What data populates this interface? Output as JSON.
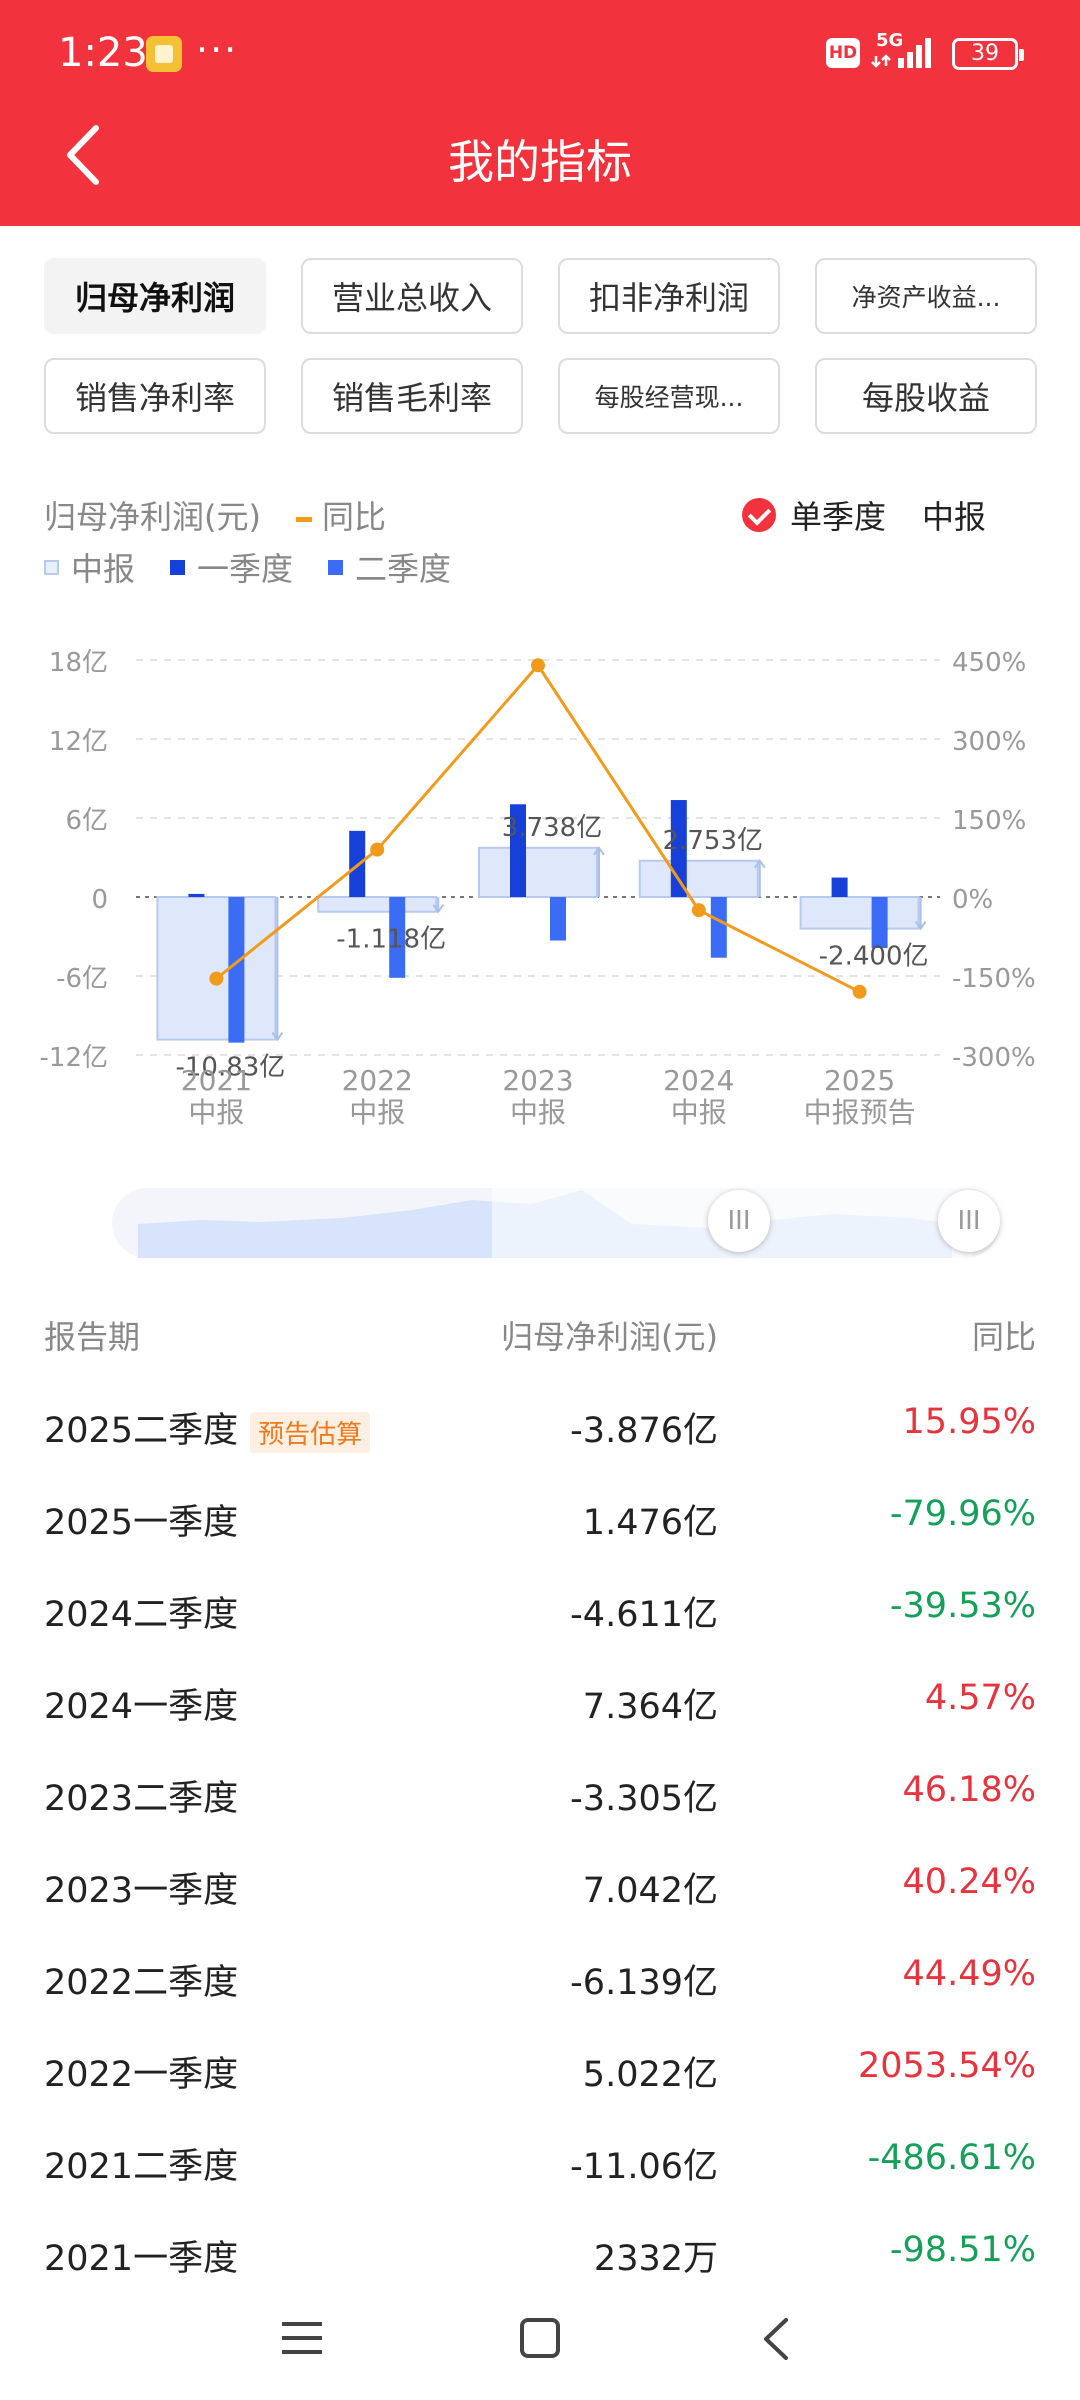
{
  "status_bar": {
    "time": "1:23",
    "dots": "···",
    "hd": "HD",
    "network": "5G",
    "battery": "39"
  },
  "header": {
    "title": "我的指标",
    "color": "#f2323c"
  },
  "tags": [
    {
      "label": "归母净利润",
      "active": true
    },
    {
      "label": "营业总收入",
      "active": false
    },
    {
      "label": "扣非净利润",
      "active": false
    },
    {
      "label": "净资产收益...",
      "active": false
    },
    {
      "label": "销售净利率",
      "active": false
    },
    {
      "label": "销售毛利率",
      "active": false
    },
    {
      "label": "每股经营现...",
      "active": false
    },
    {
      "label": "每股收益",
      "active": false
    }
  ],
  "legend": {
    "metric": "归母净利润(元)",
    "yoy": "同比",
    "single_quarter": "单季度",
    "half_year": "中报",
    "halfyear_series": "中报",
    "q1_series": "一季度",
    "q2_series": "二季度"
  },
  "chart_data": {
    "type": "bar",
    "categories": [
      "2021\n中报",
      "2022\n中报",
      "2023\n中报",
      "2024\n中报",
      "2025\n中报预告"
    ],
    "category_years": [
      "2021",
      "2022",
      "2023",
      "2024",
      "2025"
    ],
    "category_sub": [
      "中报",
      "中报",
      "中报",
      "中报",
      "中报预告"
    ],
    "series": [
      {
        "name": "中报",
        "type": "bar",
        "values": [
          -10.83,
          -1.118,
          3.738,
          2.753,
          -2.4
        ],
        "labels": [
          "-10.83亿",
          "-1.118亿",
          "3.738亿",
          "2.753亿",
          "-2.400亿"
        ],
        "color": "#dfe8fb"
      },
      {
        "name": "一季度",
        "type": "bar",
        "values": [
          0.2332,
          5.022,
          7.042,
          7.364,
          1.476
        ],
        "color": "#1640d8"
      },
      {
        "name": "二季度",
        "type": "bar",
        "values": [
          -11.06,
          -6.139,
          -3.305,
          -4.611,
          -3.876
        ],
        "color": "#3a6cf5"
      },
      {
        "name": "同比",
        "type": "line",
        "axis": "right",
        "values": [
          -155,
          90,
          440,
          -25,
          -180
        ],
        "color": "#f19a1c"
      }
    ],
    "y_left": {
      "ticks": [
        18,
        12,
        6,
        0,
        -6,
        -12
      ],
      "tick_labels": [
        "18亿",
        "12亿",
        "6亿",
        "0",
        "-6亿",
        "-12亿"
      ],
      "ylim": [
        -12,
        18
      ]
    },
    "y_right": {
      "ticks": [
        450,
        300,
        150,
        0,
        -150,
        -300
      ],
      "tick_labels": [
        "450%",
        "300%",
        "150%",
        "0%",
        "-150%",
        "-300%"
      ],
      "ylim": [
        -300,
        450
      ]
    },
    "grid": true,
    "zero_line": "dotted"
  },
  "table": {
    "headers": {
      "period": "报告期",
      "value": "归母净利润(元)",
      "yoy": "同比"
    },
    "rows": [
      {
        "period": "2025二季度",
        "badge": "预告估算",
        "value": "-3.876亿",
        "yoy": "15.95%",
        "dir": "up"
      },
      {
        "period": "2025一季度",
        "badge": "",
        "value": "1.476亿",
        "yoy": "-79.96%",
        "dir": "down"
      },
      {
        "period": "2024二季度",
        "badge": "",
        "value": "-4.611亿",
        "yoy": "-39.53%",
        "dir": "down"
      },
      {
        "period": "2024一季度",
        "badge": "",
        "value": "7.364亿",
        "yoy": "4.57%",
        "dir": "up"
      },
      {
        "period": "2023二季度",
        "badge": "",
        "value": "-3.305亿",
        "yoy": "46.18%",
        "dir": "up"
      },
      {
        "period": "2023一季度",
        "badge": "",
        "value": "7.042亿",
        "yoy": "40.24%",
        "dir": "up"
      },
      {
        "period": "2022二季度",
        "badge": "",
        "value": "-6.139亿",
        "yoy": "44.49%",
        "dir": "up"
      },
      {
        "period": "2022一季度",
        "badge": "",
        "value": "5.022亿",
        "yoy": "2053.54%",
        "dir": "up"
      },
      {
        "period": "2021二季度",
        "badge": "",
        "value": "-11.06亿",
        "yoy": "-486.61%",
        "dir": "down"
      },
      {
        "period": "2021一季度",
        "badge": "",
        "value": "2332万",
        "yoy": "-98.51%",
        "dir": "down"
      }
    ]
  },
  "range_slider": {
    "handle_glyph": "III"
  },
  "nav_icons": [
    "menu-icon",
    "home-icon",
    "back-icon"
  ]
}
